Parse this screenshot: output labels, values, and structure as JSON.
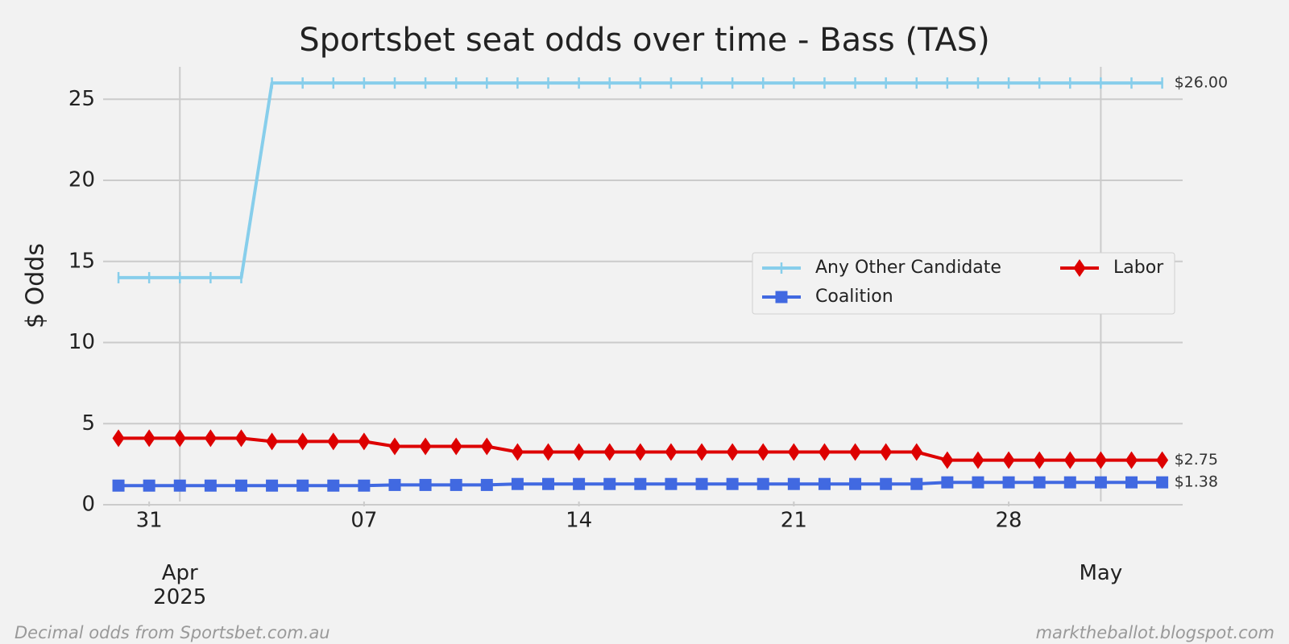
{
  "chart_data": {
    "type": "line",
    "title": "Sportsbet seat odds over time - Bass (TAS)",
    "y_label": "$ Odds",
    "x": [
      "2025-03-30",
      "2025-03-31",
      "2025-04-01",
      "2025-04-02",
      "2025-04-03",
      "2025-04-04",
      "2025-04-05",
      "2025-04-06",
      "2025-04-07",
      "2025-04-08",
      "2025-04-09",
      "2025-04-10",
      "2025-04-11",
      "2025-04-12",
      "2025-04-13",
      "2025-04-14",
      "2025-04-15",
      "2025-04-16",
      "2025-04-17",
      "2025-04-18",
      "2025-04-19",
      "2025-04-20",
      "2025-04-21",
      "2025-04-22",
      "2025-04-23",
      "2025-04-24",
      "2025-04-25",
      "2025-04-26",
      "2025-04-27",
      "2025-04-28",
      "2025-04-29",
      "2025-04-30",
      "2025-05-01",
      "2025-05-02",
      "2025-05-03"
    ],
    "series": [
      {
        "name": "Any Other Candidate",
        "color": "#87ceeb",
        "marker": "vline",
        "values": [
          14,
          14,
          14,
          14,
          14,
          26,
          26,
          26,
          26,
          26,
          26,
          26,
          26,
          26,
          26,
          26,
          26,
          26,
          26,
          26,
          26,
          26,
          26,
          26,
          26,
          26,
          26,
          26,
          26,
          26,
          26,
          26,
          26,
          26,
          26
        ],
        "value_labels": [
          null,
          null,
          null,
          null,
          null,
          null,
          null,
          null,
          null,
          null,
          null,
          null,
          null,
          null,
          null,
          null,
          null,
          null,
          null,
          null,
          null,
          null,
          null,
          null,
          null,
          null,
          null,
          null,
          null,
          null,
          null,
          null,
          null,
          null,
          "$26.00"
        ]
      },
      {
        "name": "Coalition",
        "color": "#4169e1",
        "marker": "square",
        "values": [
          1.18,
          1.18,
          1.18,
          1.18,
          1.18,
          1.18,
          1.18,
          1.18,
          1.18,
          1.22,
          1.22,
          1.22,
          1.22,
          1.28,
          1.28,
          1.28,
          1.28,
          1.28,
          1.28,
          1.28,
          1.28,
          1.28,
          1.28,
          1.28,
          1.28,
          1.28,
          1.28,
          1.38,
          1.38,
          1.38,
          1.38,
          1.38,
          1.38,
          1.38,
          1.38
        ],
        "value_labels": [
          null,
          null,
          null,
          null,
          null,
          null,
          null,
          null,
          null,
          null,
          null,
          null,
          null,
          null,
          null,
          null,
          null,
          null,
          null,
          null,
          null,
          null,
          null,
          null,
          null,
          null,
          null,
          null,
          null,
          null,
          null,
          null,
          null,
          null,
          "$1.38"
        ]
      },
      {
        "name": "Labor",
        "color": "#dd0000",
        "marker": "diamond",
        "values": [
          4.1,
          4.1,
          4.1,
          4.1,
          4.1,
          3.9,
          3.9,
          3.9,
          3.9,
          3.6,
          3.6,
          3.6,
          3.6,
          3.25,
          3.25,
          3.25,
          3.25,
          3.25,
          3.25,
          3.25,
          3.25,
          3.25,
          3.25,
          3.25,
          3.25,
          3.25,
          3.25,
          2.75,
          2.75,
          2.75,
          2.75,
          2.75,
          2.75,
          2.75,
          2.75
        ],
        "value_labels": [
          null,
          null,
          null,
          null,
          null,
          null,
          null,
          null,
          null,
          null,
          null,
          null,
          null,
          null,
          null,
          null,
          null,
          null,
          null,
          null,
          null,
          null,
          null,
          null,
          null,
          null,
          null,
          null,
          null,
          null,
          null,
          null,
          null,
          null,
          "$2.75"
        ]
      }
    ],
    "xlim": [
      "2025-03-29T12:00",
      "2025-05-03T16:00"
    ],
    "xticks": [
      {
        "value": "2025-03-31",
        "label": "31"
      },
      {
        "value": "2025-04-07",
        "label": "07"
      },
      {
        "value": "2025-04-14",
        "label": "14"
      },
      {
        "value": "2025-04-21",
        "label": "21"
      },
      {
        "value": "2025-04-28",
        "label": "28"
      }
    ],
    "xticks_major": [
      {
        "value": "2025-04-01",
        "label": "Apr\n2025"
      },
      {
        "value": "2025-05-01",
        "label": "May"
      }
    ],
    "ylim": [
      0,
      27
    ],
    "yticks": [
      0,
      5,
      10,
      15,
      20,
      25
    ],
    "grid": true,
    "legend": "center right",
    "legend_columns": 2,
    "footnote_left": "Decimal odds from Sportsbet.com.au",
    "footnote_right": "marktheballot.blogspot.com"
  }
}
